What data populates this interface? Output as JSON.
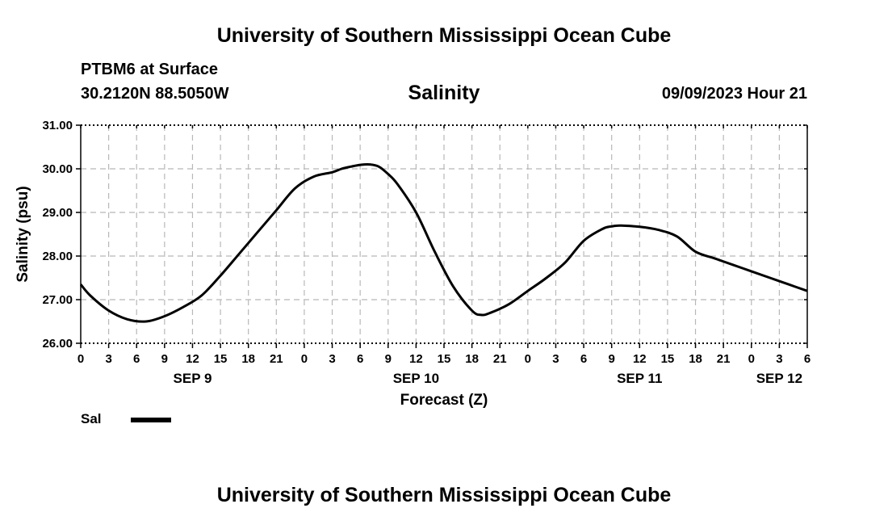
{
  "header": {
    "title": "University of Southern Mississippi Ocean Cube",
    "station": "PTBM6 at Surface",
    "coords": "30.2120N  88.5050W",
    "chart_title": "Salinity",
    "datetime": "09/09/2023 Hour 21",
    "footer_title": "University of Southern Mississippi Ocean Cube"
  },
  "legend": {
    "label": "Sal"
  },
  "chart_data": {
    "type": "line",
    "title": "Salinity",
    "xlabel": "Forecast (Z)",
    "ylabel": "Salinity (psu)",
    "xlim": [
      0,
      78
    ],
    "ylim": [
      26,
      31
    ],
    "grid": true,
    "yticks": [
      "26.00",
      "27.00",
      "28.00",
      "29.00",
      "30.00",
      "31.00"
    ],
    "xticks": [
      "0",
      "3",
      "6",
      "9",
      "12",
      "15",
      "18",
      "21",
      "0",
      "3",
      "6",
      "9",
      "12",
      "15",
      "18",
      "21",
      "0",
      "3",
      "6",
      "9",
      "12",
      "15",
      "18",
      "21",
      "0",
      "3",
      "6"
    ],
    "date_labels": [
      {
        "label": "SEP 9",
        "hour": 12
      },
      {
        "label": "SEP 10",
        "hour": 36
      },
      {
        "label": "SEP 11",
        "hour": 60
      },
      {
        "label": "SEP 12",
        "hour": 75
      }
    ],
    "series": [
      {
        "name": "Sal",
        "color": "#000000",
        "x": [
          0,
          1,
          3,
          5,
          7,
          9,
          11,
          13,
          15,
          17,
          19,
          21,
          23,
          25,
          27,
          28,
          29,
          30,
          31,
          32,
          33,
          34,
          36,
          38,
          40,
          42,
          43,
          44,
          46,
          48,
          50,
          52,
          54,
          56,
          57,
          58,
          60,
          62,
          64,
          66,
          68,
          70,
          72,
          74,
          76,
          78
        ],
        "y": [
          27.35,
          27.1,
          26.75,
          26.55,
          26.5,
          26.62,
          26.83,
          27.1,
          27.55,
          28.05,
          28.55,
          29.05,
          29.55,
          29.82,
          29.92,
          30.0,
          30.05,
          30.09,
          30.1,
          30.05,
          29.88,
          29.65,
          29.0,
          28.1,
          27.3,
          26.75,
          26.65,
          26.7,
          26.9,
          27.2,
          27.5,
          27.85,
          28.35,
          28.62,
          28.68,
          28.7,
          28.67,
          28.6,
          28.45,
          28.1,
          27.95,
          27.8,
          27.65,
          27.5,
          27.35,
          27.2
        ]
      }
    ]
  }
}
